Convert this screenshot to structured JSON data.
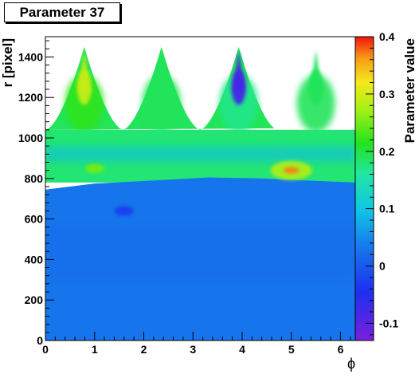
{
  "chart_data": {
    "type": "heatmap",
    "title": "Parameter 37",
    "xlabel": "ϕ",
    "ylabel": "r [pixel]",
    "zlabel": "Parameter value",
    "xlim": [
      0,
      6.3
    ],
    "ylim": [
      0,
      1500
    ],
    "zlim": [
      -0.13,
      0.4
    ],
    "x_ticks": [
      0,
      1,
      2,
      3,
      4,
      5,
      6
    ],
    "y_ticks": [
      0,
      200,
      400,
      600,
      800,
      1000,
      1200,
      1400
    ],
    "z_ticks": [
      -0.1,
      0,
      0.1,
      0.2,
      0.3,
      0.4
    ],
    "x_tick_labels": [
      "0",
      "1",
      "2",
      "3",
      "4",
      "5",
      "6"
    ],
    "y_tick_labels": [
      "0",
      "200",
      "400",
      "600",
      "800",
      "1000",
      "1200",
      "1400"
    ],
    "z_tick_labels": [
      "-0.1",
      "0",
      "0.1",
      "0.2",
      "0.3",
      "0.4"
    ],
    "colormap": "rainbow (violet-blue-cyan-green-yellow-red)",
    "regions": [
      {
        "name": "inner (r < 780)",
        "value": 0.03
      },
      {
        "name": "transition band (r 780-1050)",
        "value": 0.18
      },
      {
        "name": "petals (r 1050-1450)",
        "value": 0.19
      }
    ],
    "petals": [
      {
        "phi_center": 0.79,
        "r_top": 1450,
        "value": 0.22,
        "peak_value": 0.29
      },
      {
        "phi_center": 2.36,
        "r_top": 1450,
        "value": 0.19,
        "peak_value": 0.19
      },
      {
        "phi_center": 3.93,
        "r_top": 1450,
        "value": 0.17,
        "peak_value": -0.08
      },
      {
        "phi_center": 5.5,
        "r_top": 1450,
        "value": 0.19,
        "peak_value": 0.19
      }
    ],
    "hotspots": [
      {
        "phi": 5.0,
        "r": 840,
        "value": 0.37
      },
      {
        "phi": 1.0,
        "r": 850,
        "value": 0.25
      },
      {
        "phi": 1.6,
        "r": 640,
        "value": -0.03
      }
    ]
  }
}
